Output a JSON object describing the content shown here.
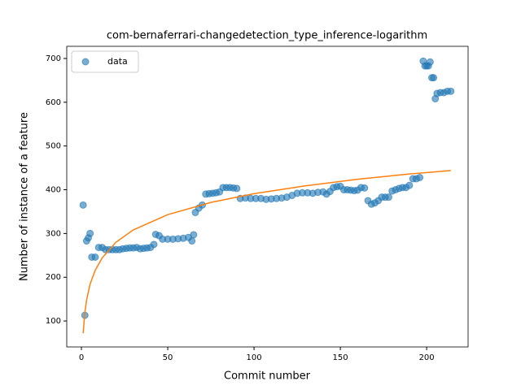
{
  "chart_data": {
    "type": "scatter",
    "title": "com-bernaferrari-changedetection_type_inference-logarithm",
    "xlabel": "Commit number",
    "ylabel": "Number of instance of a feature",
    "xlim": [
      -8.5,
      224
    ],
    "ylim": [
      40.7,
      727.8
    ],
    "xticks": [
      0,
      50,
      100,
      150,
      200
    ],
    "yticks": [
      100,
      200,
      300,
      400,
      500,
      600,
      700
    ],
    "legend": "upper left",
    "series": [
      {
        "name": "data",
        "type": "scatter",
        "color": "#1f77b4",
        "x": [
          1,
          2,
          3,
          4,
          5,
          6,
          8,
          10,
          12,
          14,
          16,
          18,
          20,
          22,
          24,
          26,
          28,
          30,
          32,
          34,
          36,
          38,
          40,
          42,
          43,
          45,
          47,
          50,
          53,
          56,
          59,
          62,
          64,
          65,
          66,
          68,
          70,
          72,
          74,
          76,
          78,
          80,
          82,
          84,
          86,
          88,
          90,
          92,
          95,
          98,
          101,
          104,
          107,
          110,
          113,
          116,
          119,
          122,
          125,
          128,
          131,
          134,
          137,
          140,
          142,
          144,
          146,
          148,
          150,
          152,
          154,
          156,
          158,
          160,
          162,
          164,
          166,
          168,
          170,
          172,
          174,
          176,
          178,
          180,
          182,
          184,
          186,
          188,
          190,
          192,
          194,
          196,
          198,
          199,
          200,
          201,
          202,
          203,
          204,
          205,
          206,
          208,
          210,
          212,
          214
        ],
        "values": [
          365,
          113,
          283,
          290,
          300,
          246,
          246,
          268,
          268,
          263,
          263,
          263,
          263,
          263,
          265,
          266,
          267,
          267,
          268,
          265,
          266,
          267,
          268,
          275,
          298,
          295,
          287,
          287,
          287,
          288,
          289,
          291,
          283,
          297,
          348,
          358,
          365,
          390,
          391,
          392,
          393,
          395,
          405,
          405,
          405,
          404,
          403,
          380,
          381,
          380,
          380,
          380,
          378,
          379,
          380,
          381,
          383,
          387,
          392,
          393,
          393,
          392,
          394,
          395,
          390,
          396,
          405,
          407,
          408,
          400,
          400,
          399,
          398,
          399,
          405,
          404,
          375,
          367,
          370,
          375,
          383,
          383,
          383,
          397,
          400,
          403,
          405,
          405,
          410,
          425,
          425,
          428,
          694,
          683,
          683,
          683,
          692,
          656,
          656,
          608,
          620,
          622,
          622,
          625,
          625
        ]
      },
      {
        "type": "line",
        "color": "#ff7f0e",
        "x": [
          1,
          2,
          3,
          5,
          8,
          12,
          20,
          30,
          50,
          75,
          100,
          130,
          160,
          190,
          214
        ],
        "values": [
          72,
          120,
          148,
          184,
          216,
          244,
          280,
          308,
          343,
          371,
          391,
          409,
          424,
          436,
          444
        ]
      }
    ]
  }
}
